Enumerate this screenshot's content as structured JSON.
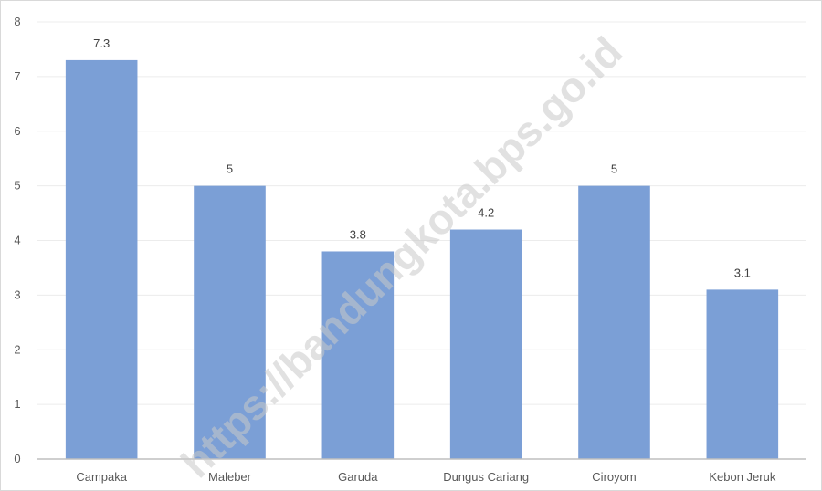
{
  "chart_data": {
    "type": "bar",
    "title": "",
    "xlabel": "",
    "ylabel": "",
    "categories": [
      "Campaka",
      "Maleber",
      "Garuda",
      "Dungus Cariang",
      "Ciroyom",
      "Kebon Jeruk"
    ],
    "values": [
      7.3,
      5,
      3.8,
      4.2,
      5,
      3.1
    ],
    "value_labels": [
      "7.3",
      "5",
      "3.8",
      "4.2",
      "5",
      "3.1"
    ],
    "ylim": [
      0,
      8
    ],
    "yticks": [
      "0",
      "1",
      "2",
      "3",
      "4",
      "5",
      "6",
      "7",
      "8"
    ],
    "grid": true,
    "legend": "none"
  },
  "colors": {
    "bar": "#7b9fd6",
    "gridline": "#ececec",
    "axis": "#bfbfbf"
  },
  "watermark": {
    "text": "https://bandungkota.bps.go.id"
  }
}
